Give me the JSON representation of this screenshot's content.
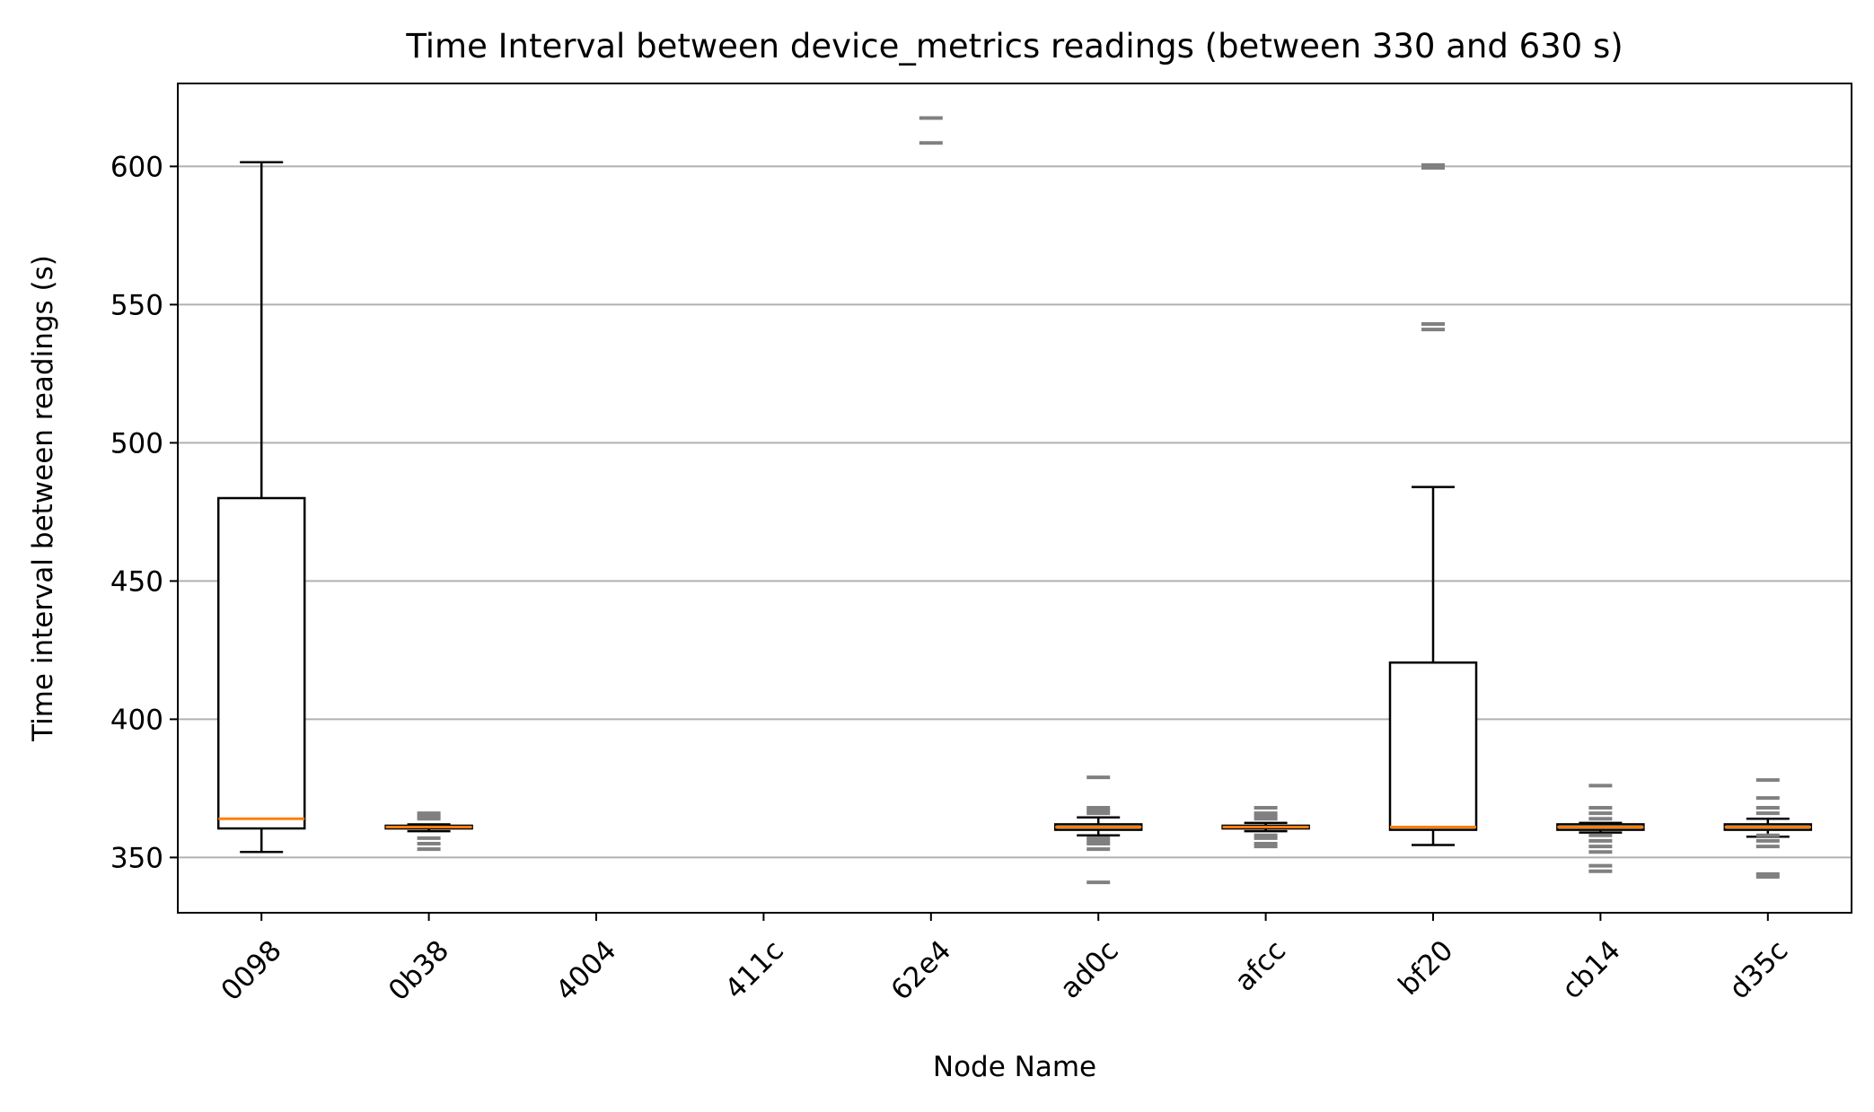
{
  "chart_data": {
    "type": "box",
    "title": "Time Interval between device_metrics readings (between 330 and 630 s)",
    "xlabel": "Node Name",
    "ylabel": "Time interval between readings (s)",
    "ylim": [
      330,
      630
    ],
    "yticks": [
      350,
      400,
      450,
      500,
      550,
      600
    ],
    "grid": "y",
    "categories": [
      "0098",
      "0b38",
      "4004",
      "411c",
      "62e4",
      "ad0c",
      "afcc",
      "bf20",
      "cb14",
      "d35c"
    ],
    "boxes": [
      {
        "name": "0098",
        "whislo": 352,
        "q1": 360.5,
        "median": 364,
        "q3": 480,
        "whishi": 601.5,
        "fliers": []
      },
      {
        "name": "0b38",
        "whislo": 359.5,
        "q1": 360.5,
        "median": 361,
        "q3": 361.5,
        "whishi": 362,
        "fliers": [
          353,
          355,
          357,
          364,
          365,
          366
        ]
      },
      {
        "name": "4004",
        "whislo": null,
        "q1": null,
        "median": null,
        "q3": null,
        "whishi": null,
        "fliers": []
      },
      {
        "name": "411c",
        "whislo": null,
        "q1": null,
        "median": null,
        "q3": null,
        "whishi": null,
        "fliers": []
      },
      {
        "name": "62e4",
        "whislo": null,
        "q1": null,
        "median": null,
        "q3": null,
        "whishi": null,
        "fliers": [
          608.5,
          617.5
        ]
      },
      {
        "name": "ad0c",
        "whislo": 358,
        "q1": 360,
        "median": 361,
        "q3": 362,
        "whishi": 364.5,
        "fliers": [
          341,
          353,
          355,
          356,
          357,
          366,
          367,
          368,
          379
        ]
      },
      {
        "name": "afcc",
        "whislo": 359.5,
        "q1": 360.5,
        "median": 361,
        "q3": 361.5,
        "whishi": 362.5,
        "fliers": [
          354,
          355,
          357,
          358,
          364,
          365,
          366,
          368
        ]
      },
      {
        "name": "bf20",
        "whislo": 354.5,
        "q1": 360,
        "median": 361,
        "q3": 420.5,
        "whishi": 484,
        "fliers": [
          541,
          543,
          599.5,
          600.5
        ]
      },
      {
        "name": "cb14",
        "whislo": 359,
        "q1": 360,
        "median": 361,
        "q3": 362,
        "whishi": 362.5,
        "fliers": [
          345,
          347,
          352,
          354,
          356,
          358,
          364,
          366,
          368,
          376
        ]
      },
      {
        "name": "d35c",
        "whislo": 357.5,
        "q1": 360,
        "median": 361,
        "q3": 362,
        "whishi": 364,
        "fliers": [
          343,
          344,
          354,
          356,
          358,
          366,
          368,
          371.5,
          378
        ]
      }
    ],
    "colors": {
      "box": "#000000",
      "median": "#ff7f0e",
      "flier": "#808080",
      "grid": "#b0b0b0"
    }
  }
}
